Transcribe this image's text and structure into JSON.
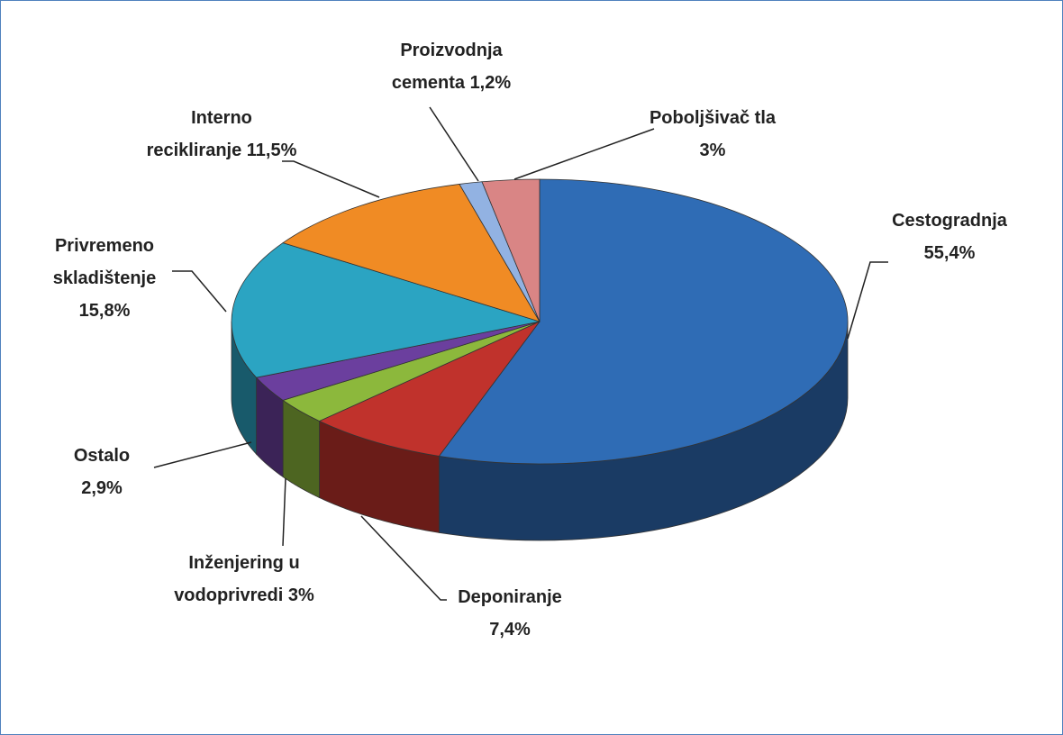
{
  "chart_data": {
    "type": "pie",
    "categories": [
      "Cestogradnja",
      "Deponiranje",
      "Inženjering u vodoprivredi",
      "Ostalo",
      "Privremeno skladištenje",
      "Interno recikliranje",
      "Proizvodnja cementa",
      "Poboljšivač tla"
    ],
    "values": [
      55.4,
      7.4,
      3,
      2.9,
      15.8,
      11.5,
      1.2,
      3
    ],
    "value_labels": [
      "55,4%",
      "7,4%",
      "3%",
      "2,9%",
      "15,8%",
      "11,5%",
      "1,2%",
      "3%"
    ],
    "colors": [
      "#2f6cb5",
      "#c0322c",
      "#8cb83c",
      "#6b3f9e",
      "#2ba4c2",
      "#f08b24",
      "#92b2e2",
      "#d98585"
    ]
  }
}
